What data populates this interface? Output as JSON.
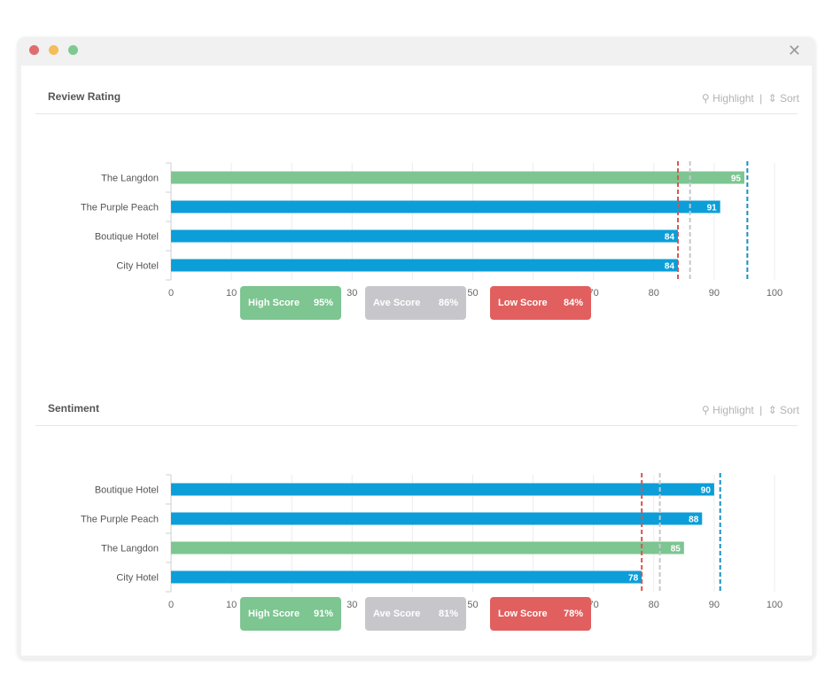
{
  "colors": {
    "highlight": "#7dc591",
    "bar": "#0c9ed8",
    "high": "#7dc591",
    "ave": "#c7c7cb",
    "low": "#e15f5f",
    "high_line": "#1a8fc4",
    "ave_line": "#c7c7cb",
    "low_line": "#d9534f"
  },
  "toolbar": {
    "highlight_label": "Highlight",
    "sort_label": "Sort",
    "separator": "|"
  },
  "icons": {
    "close": "close-icon",
    "highlight": "lightbulb-icon",
    "sort": "sort-arrows-icon"
  },
  "sections": [
    {
      "title": "Review Rating",
      "legend": [
        {
          "label": "High Score",
          "value": "95%"
        },
        {
          "label": "Ave Score",
          "value": "86%"
        },
        {
          "label": "Low Score",
          "value": "84%"
        }
      ]
    },
    {
      "title": "Sentiment",
      "legend": [
        {
          "label": "High Score",
          "value": "91%"
        },
        {
          "label": "Ave Score",
          "value": "81%"
        },
        {
          "label": "Low Score",
          "value": "78%"
        }
      ]
    }
  ],
  "chart_data": [
    {
      "type": "bar",
      "orientation": "horizontal",
      "title": "Review Rating",
      "categories": [
        "The Langdon",
        "The Purple Peach",
        "Boutique Hotel",
        "City Hotel"
      ],
      "values": [
        95,
        91,
        84,
        84
      ],
      "highlighted": "The Langdon",
      "xlim": [
        0,
        100
      ],
      "xticks": [
        0,
        10,
        20,
        30,
        40,
        50,
        60,
        70,
        80,
        90,
        100
      ],
      "reference_lines": {
        "high": 95.5,
        "ave": 86,
        "low": 84
      },
      "grid": true
    },
    {
      "type": "bar",
      "orientation": "horizontal",
      "title": "Sentiment",
      "categories": [
        "Boutique Hotel",
        "The Purple Peach",
        "The Langdon",
        "City Hotel"
      ],
      "values": [
        90,
        88,
        85,
        78
      ],
      "highlighted": "The Langdon",
      "xlim": [
        0,
        100
      ],
      "xticks": [
        0,
        10,
        20,
        30,
        40,
        50,
        60,
        70,
        80,
        90,
        100
      ],
      "reference_lines": {
        "high": 91,
        "ave": 81,
        "low": 78
      },
      "grid": true
    }
  ]
}
